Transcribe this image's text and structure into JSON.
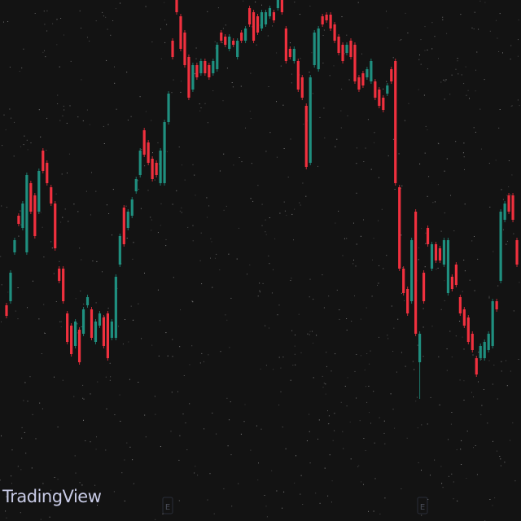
{
  "chart_data": {
    "type": "candlestick",
    "watermark": "TradingView",
    "markers": [
      "E",
      "E"
    ],
    "ylim": [
      0,
      640
    ],
    "up_color": "#1f8f7f",
    "down_color": "#f0303e",
    "background": "#131313",
    "series": [
      {
        "open": [
          265,
          270,
          330,
          375,
          360,
          330,
          415,
          400,
          380,
          455,
          440,
          410,
          390,
          310,
          310,
          255,
          240,
          215,
          235,
          230,
          265,
          260,
          220,
          240,
          250,
          255,
          225,
          225,
          315,
          385,
          360,
          375,
          405,
          425,
          480,
          465,
          445,
          440,
          415,
          415,
          490,
          590,
          640,
          620,
          600,
          570,
          530,
          560,
          550,
          565,
          560,
          550,
          555,
          600,
          595,
          580,
          590,
          570,
          600,
          590,
          630,
          625,
          620,
          605,
          610,
          620,
          625,
          630,
          640,
          605,
          580,
          565,
          565,
          545,
          510,
          440,
          560,
          555,
          620,
          622,
          622,
          610,
          595,
          585,
          575,
          590,
          585,
          545,
          550,
          545,
          540,
          540,
          530,
          520,
          525,
          555,
          565,
          410,
          310,
          285,
          270,
          380,
          195,
          305,
          360,
          310,
          340,
          335,
          315,
          280,
          300,
          315,
          275,
          260,
          250,
          230,
          200,
          200,
          200,
          210,
          215,
          270,
          295,
          370,
          400,
          400,
          345
        ],
        "high": [
          268,
          308,
          348,
          378,
          393,
          428,
          418,
          403,
          433,
          458,
          443,
          413,
          393,
          313,
          313,
          258,
          243,
          248,
          238,
          263,
          278,
          263,
          248,
          258,
          253,
          258,
          248,
          303,
          353,
          388,
          383,
          398,
          423,
          458,
          483,
          468,
          448,
          443,
          458,
          493,
          528,
          593,
          640,
          623,
          603,
          573,
          563,
          563,
          568,
          568,
          563,
          568,
          588,
          603,
          598,
          598,
          593,
          593,
          603,
          608,
          633,
          628,
          623,
          628,
          628,
          633,
          628,
          640,
          640,
          608,
          583,
          583,
          568,
          548,
          513,
          548,
          603,
          608,
          623,
          625,
          625,
          613,
          598,
          588,
          588,
          593,
          588,
          548,
          553,
          558,
          568,
          543,
          533,
          523,
          538,
          558,
          568,
          413,
          313,
          288,
          348,
          383,
          233,
          308,
          363,
          343,
          343,
          338,
          348,
          348,
          303,
          318,
          278,
          263,
          253,
          233,
          203,
          218,
          223,
          233,
          273,
          273,
          383,
          393,
          403,
          403,
          348
        ],
        "low": [
          249,
          267,
          327,
          362,
          357,
          327,
          377,
          347,
          377,
          427,
          412,
          387,
          332,
          292,
          267,
          217,
          202,
          212,
          192,
          227,
          262,
          222,
          217,
          237,
          212,
          197,
          222,
          222,
          312,
          337,
          357,
          372,
          402,
          422,
          447,
          437,
          417,
          422,
          412,
          412,
          487,
          567,
          622,
          577,
          557,
          517,
          527,
          542,
          547,
          547,
          542,
          547,
          552,
          587,
          582,
          577,
          582,
          567,
          587,
          587,
          607,
          587,
          597,
          602,
          607,
          617,
          612,
          627,
          622,
          562,
          567,
          562,
          527,
          517,
          432,
          437,
          557,
          552,
          607,
          612,
          602,
          587,
          572,
          562,
          572,
          567,
          537,
          527,
          532,
          542,
          537,
          517,
          507,
          502,
          522,
          537,
          412,
          307,
          277,
          252,
          267,
          227,
          150,
          267,
          337,
          307,
          317,
          317,
          312,
          277,
          282,
          287,
          252,
          237,
          217,
          207,
          177,
          197,
          197,
          207,
          212,
          257,
          292,
          367,
          377,
          367,
          312
        ],
        "close": [
          252,
          305,
          345,
          365,
          390,
          425,
          380,
          350,
          430,
          430,
          415,
          390,
          335,
          295,
          270,
          220,
          205,
          245,
          195,
          260,
          275,
          225,
          245,
          255,
          215,
          200,
          245,
          300,
          350,
          340,
          380,
          395,
          420,
          455,
          450,
          440,
          420,
          425,
          455,
          490,
          525,
          570,
          625,
          580,
          560,
          520,
          560,
          545,
          565,
          550,
          545,
          565,
          585,
          590,
          585,
          595,
          585,
          590,
          590,
          605,
          610,
          590,
          600,
          625,
          625,
          630,
          615,
          640,
          625,
          565,
          570,
          580,
          530,
          520,
          435,
          545,
          600,
          605,
          610,
          615,
          605,
          590,
          575,
          565,
          585,
          570,
          540,
          530,
          535,
          555,
          565,
          520,
          510,
          505,
          535,
          540,
          415,
          310,
          280,
          255,
          345,
          230,
          230,
          270,
          340,
          340,
          320,
          320,
          345,
          345,
          285,
          290,
          255,
          240,
          220,
          210,
          180,
          215,
          220,
          230,
          270,
          260,
          380,
          390,
          380,
          370,
          315
        ]
      }
    ]
  }
}
